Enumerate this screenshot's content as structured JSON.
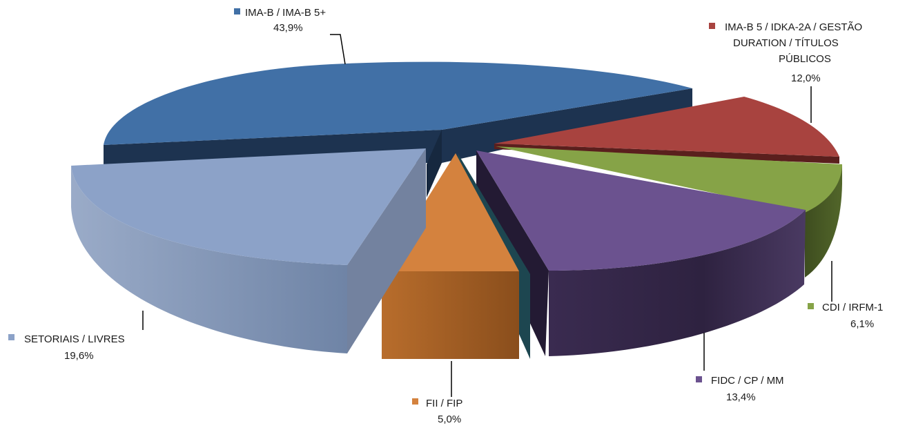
{
  "chart_data": {
    "type": "pie",
    "style": "3d-exploded",
    "slices": [
      {
        "name": "IMA-B / IMA-B 5+",
        "value": 43.9,
        "label": "43,9%",
        "color": "#4170A6"
      },
      {
        "name": "IMA-B 5 / IDKA-2A / GESTÃO DURATION / TÍTULOS PÚBLICOS",
        "name_lines": [
          "IMA-B 5 / IDKA-2A / GESTÃO",
          "DURATION / TÍTULOS",
          "PÚBLICOS"
        ],
        "value": 12.0,
        "label": "12,0%",
        "color": "#A8433F"
      },
      {
        "name": "CDI / IRFM-1",
        "value": 6.1,
        "label": "6,1%",
        "color": "#86A347"
      },
      {
        "name": "FIDC / CP / MM",
        "value": 13.4,
        "label": "13,4%",
        "color": "#6B528F"
      },
      {
        "name": "FII / FIP",
        "value": 5.0,
        "label": "5,0%",
        "color": "#D4823E"
      },
      {
        "name": "SETORIAIS / LIVRES",
        "value": 19.6,
        "label": "19,6%",
        "color": "#8CA2C8"
      }
    ]
  }
}
